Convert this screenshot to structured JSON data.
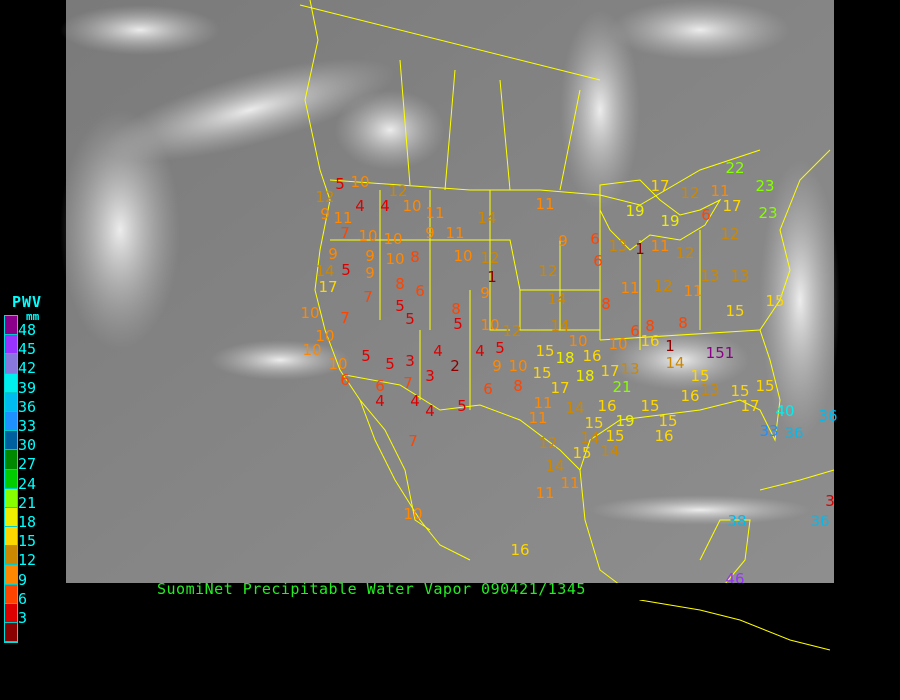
{
  "caption": "SuomiNet Precipitable Water Vapor 090421/1345",
  "legend": {
    "title": "PWV",
    "unit": "mm",
    "labels": [
      "48",
      "45",
      "42",
      "39",
      "36",
      "33",
      "30",
      "27",
      "24",
      "21",
      "18",
      "15",
      "12",
      "9",
      "6",
      "3"
    ],
    "colors": [
      "#8b008b",
      "#9933ff",
      "#8877dd",
      "#00eeee",
      "#00bbee",
      "#1e90ff",
      "#005f9f",
      "#008800",
      "#00cc00",
      "#88ff00",
      "#eeee00",
      "#ffd700",
      "#cc8800",
      "#ff8800",
      "#ff4400",
      "#dd0000",
      "#8b0000"
    ]
  },
  "colors": {
    "background": "#000000",
    "basemap_lines": "#ffff00",
    "caption": "#22ee22"
  },
  "stations": [
    5,
    10,
    12,
    12,
    4,
    4,
    10,
    11,
    14,
    11,
    9,
    11,
    7,
    10,
    10,
    9,
    11,
    10,
    9,
    9,
    9,
    8,
    10,
    12,
    9,
    6,
    6,
    12,
    14,
    5,
    17,
    7,
    8,
    6,
    1,
    9,
    10,
    7,
    5,
    5,
    8,
    5,
    10,
    12,
    14,
    14,
    10,
    8,
    10,
    10,
    10,
    5,
    5,
    3,
    4,
    2,
    4,
    5,
    9,
    10,
    15,
    18,
    16,
    10,
    6,
    16,
    6,
    6,
    7,
    3,
    6,
    8,
    15,
    17,
    18,
    17,
    13,
    4,
    4,
    4,
    5,
    11,
    11,
    14,
    15,
    16,
    19,
    15,
    15,
    15,
    14,
    14,
    15,
    12,
    7,
    14,
    11,
    11,
    10,
    16,
    17,
    12,
    11,
    17,
    19,
    19,
    6,
    12,
    13,
    1,
    11,
    12,
    13,
    13,
    11,
    12,
    11,
    15,
    15,
    8,
    8,
    1,
    14,
    151,
    15,
    16,
    16,
    13,
    15,
    15,
    17,
    22,
    23,
    23,
    21,
    40,
    33,
    36,
    36,
    38,
    36,
    3,
    37,
    46
  ]
}
